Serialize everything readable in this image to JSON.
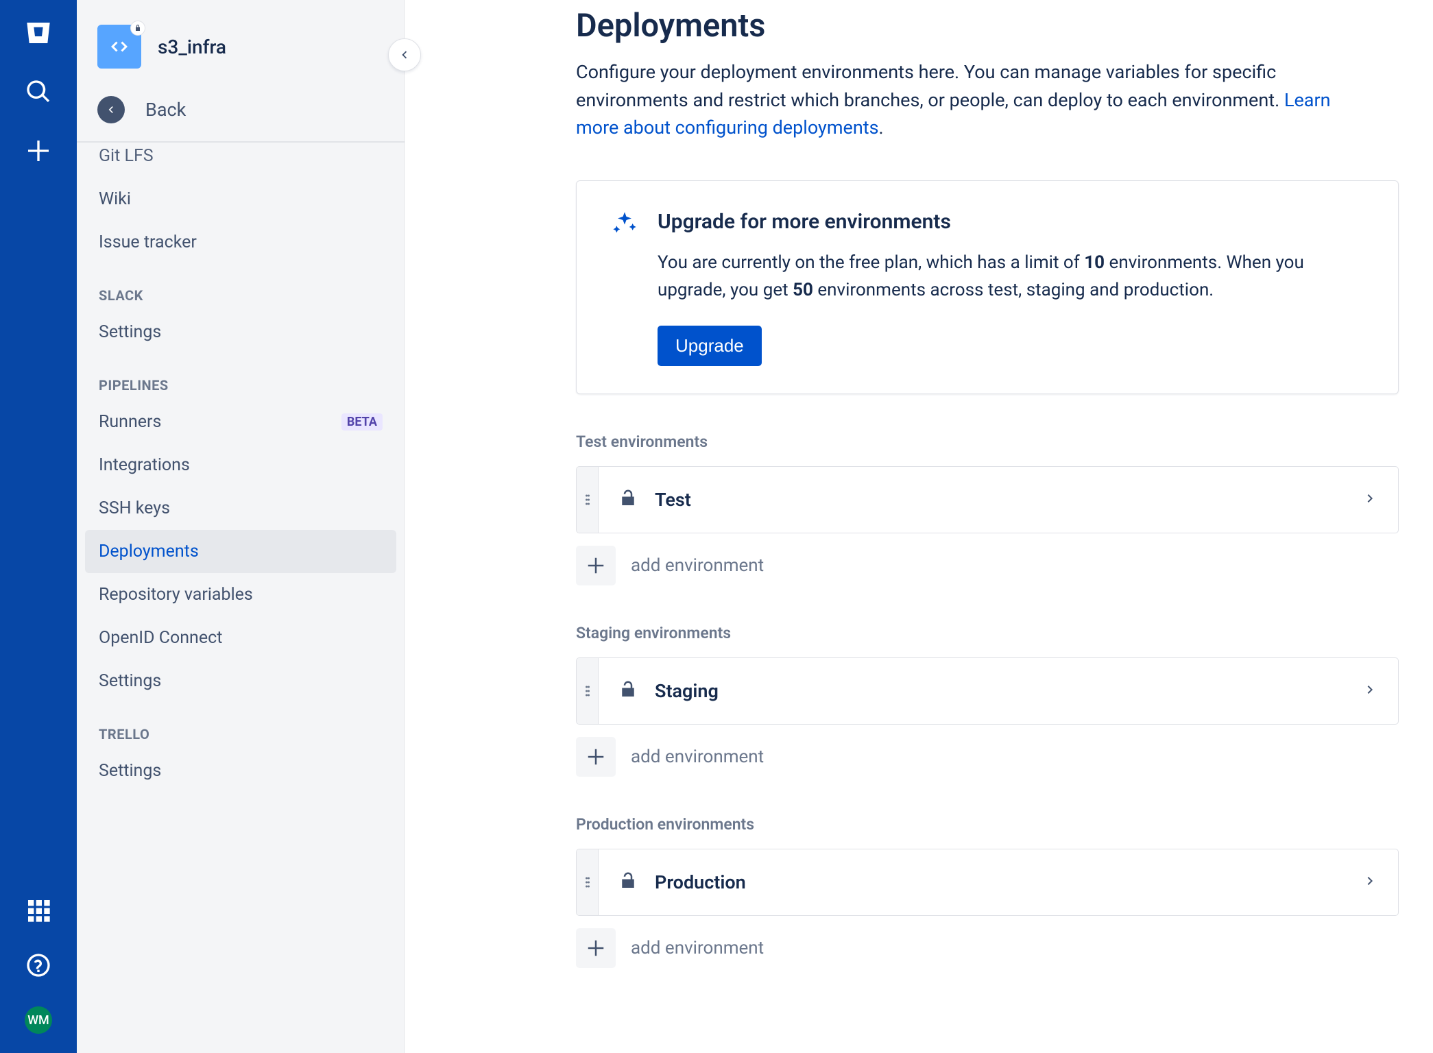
{
  "repo": {
    "name": "s3_infra"
  },
  "back": {
    "label": "Back"
  },
  "nav": {
    "items": [
      "Git LFS",
      "Wiki",
      "Issue tracker"
    ],
    "slack_heading": "SLACK",
    "slack_items": [
      "Settings"
    ],
    "pipelines_heading": "PIPELINES",
    "pipelines_items": [
      "Runners",
      "Integrations",
      "SSH keys",
      "Deployments",
      "Repository variables",
      "OpenID Connect",
      "Settings"
    ],
    "beta_label": "BETA",
    "trello_heading": "TRELLO",
    "trello_items": [
      "Settings"
    ]
  },
  "page": {
    "title": "Deployments",
    "desc": "Configure your deployment environments here. You can manage variables for specific environments and restrict which branches, or people, can deploy to each environment.",
    "learn_link": "Learn more about configuring deployments"
  },
  "upgrade": {
    "title": "Upgrade for more environments",
    "text_pre": "You are currently on the free plan, which has a limit of ",
    "limit_free": "10",
    "text_mid": " environments. When you upgrade, you get ",
    "limit_paid": "50",
    "text_post": " environments across test, staging and production.",
    "button": "Upgrade"
  },
  "env_sections": [
    {
      "heading": "Test environments",
      "name": "Test",
      "add_label": "add environment"
    },
    {
      "heading": "Staging environments",
      "name": "Staging",
      "add_label": "add environment"
    },
    {
      "heading": "Production environments",
      "name": "Production",
      "add_label": "add environment"
    }
  ],
  "avatar": "WM"
}
